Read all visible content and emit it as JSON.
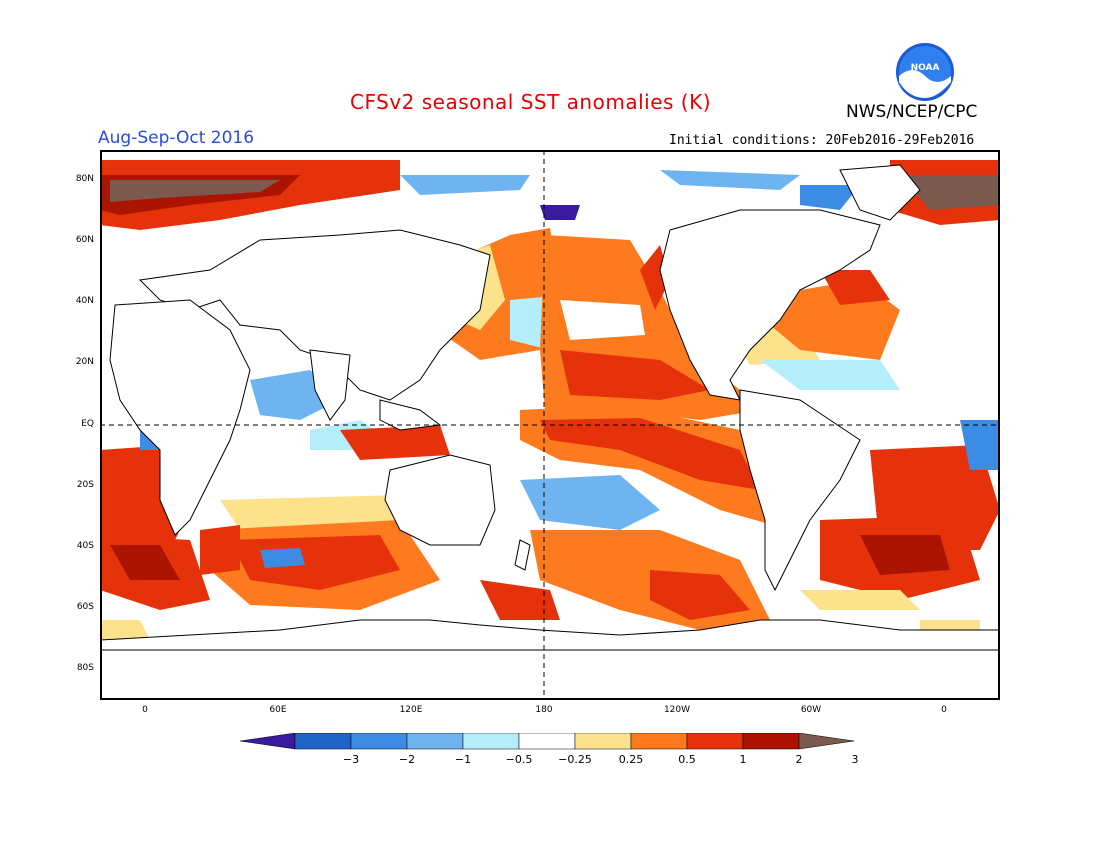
{
  "header": {
    "title": "CFSv2 seasonal SST anomalies (K)",
    "org": "NWS/NCEP/CPC",
    "period": "Aug-Sep-Oct 2016",
    "initial_conditions": "Initial conditions: 20Feb2016-29Feb2016",
    "logo_text": "NOAA"
  },
  "map": {
    "lat_labels": [
      "80N",
      "60N",
      "40N",
      "20N",
      "EQ",
      "20S",
      "40S",
      "60S",
      "80S"
    ],
    "lon_labels": [
      "0",
      "60E",
      "120E",
      "180",
      "120W",
      "60W",
      "0"
    ]
  },
  "colorbar": {
    "labels": [
      "−3",
      "−2",
      "−1",
      "−0.5",
      "−0.25",
      "0.25",
      "0.5",
      "1",
      "2",
      "3"
    ],
    "colors": [
      "#3a1a9e",
      "#1e64c8",
      "#3c8ce6",
      "#6eb4f0",
      "#b4eefa",
      "#ffffff",
      "#fde28c",
      "#fd7a1e",
      "#e6320a",
      "#aa1400",
      "#7a5a4e"
    ]
  }
}
